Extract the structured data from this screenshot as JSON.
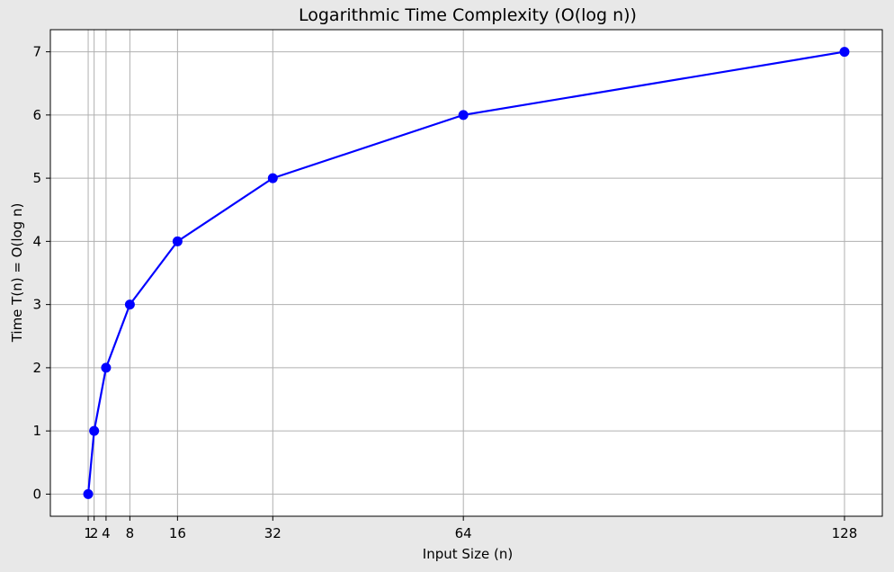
{
  "chart_data": {
    "type": "line",
    "title": "Logarithmic Time Complexity (O(log n))",
    "xlabel": "Input Size (n)",
    "ylabel": "Time T(n) = O(log n)",
    "x": [
      1,
      2,
      4,
      8,
      16,
      32,
      64,
      128
    ],
    "series": [
      {
        "values": [
          0,
          1,
          2,
          3,
          4,
          5,
          6,
          7
        ],
        "color": "#0000ff",
        "marker": "circle"
      }
    ],
    "xticks": [
      1,
      2,
      4,
      8,
      16,
      32,
      64,
      128
    ],
    "xtick_labels": [
      "1",
      "2",
      "4",
      "8",
      "16",
      "32",
      "64",
      "128"
    ],
    "yticks": [
      0,
      1,
      2,
      3,
      4,
      5,
      6,
      7
    ],
    "ytick_labels": [
      "0",
      "1",
      "2",
      "3",
      "4",
      "5",
      "6",
      "7"
    ],
    "xlim": [
      -5.35,
      134.35
    ],
    "ylim": [
      -0.35,
      7.35
    ],
    "grid": true,
    "colors": {
      "figure_bg": "#e8e8e8",
      "plot_bg": "#ffffff",
      "grid": "#b0b0b0",
      "line": "#0000ff"
    }
  }
}
